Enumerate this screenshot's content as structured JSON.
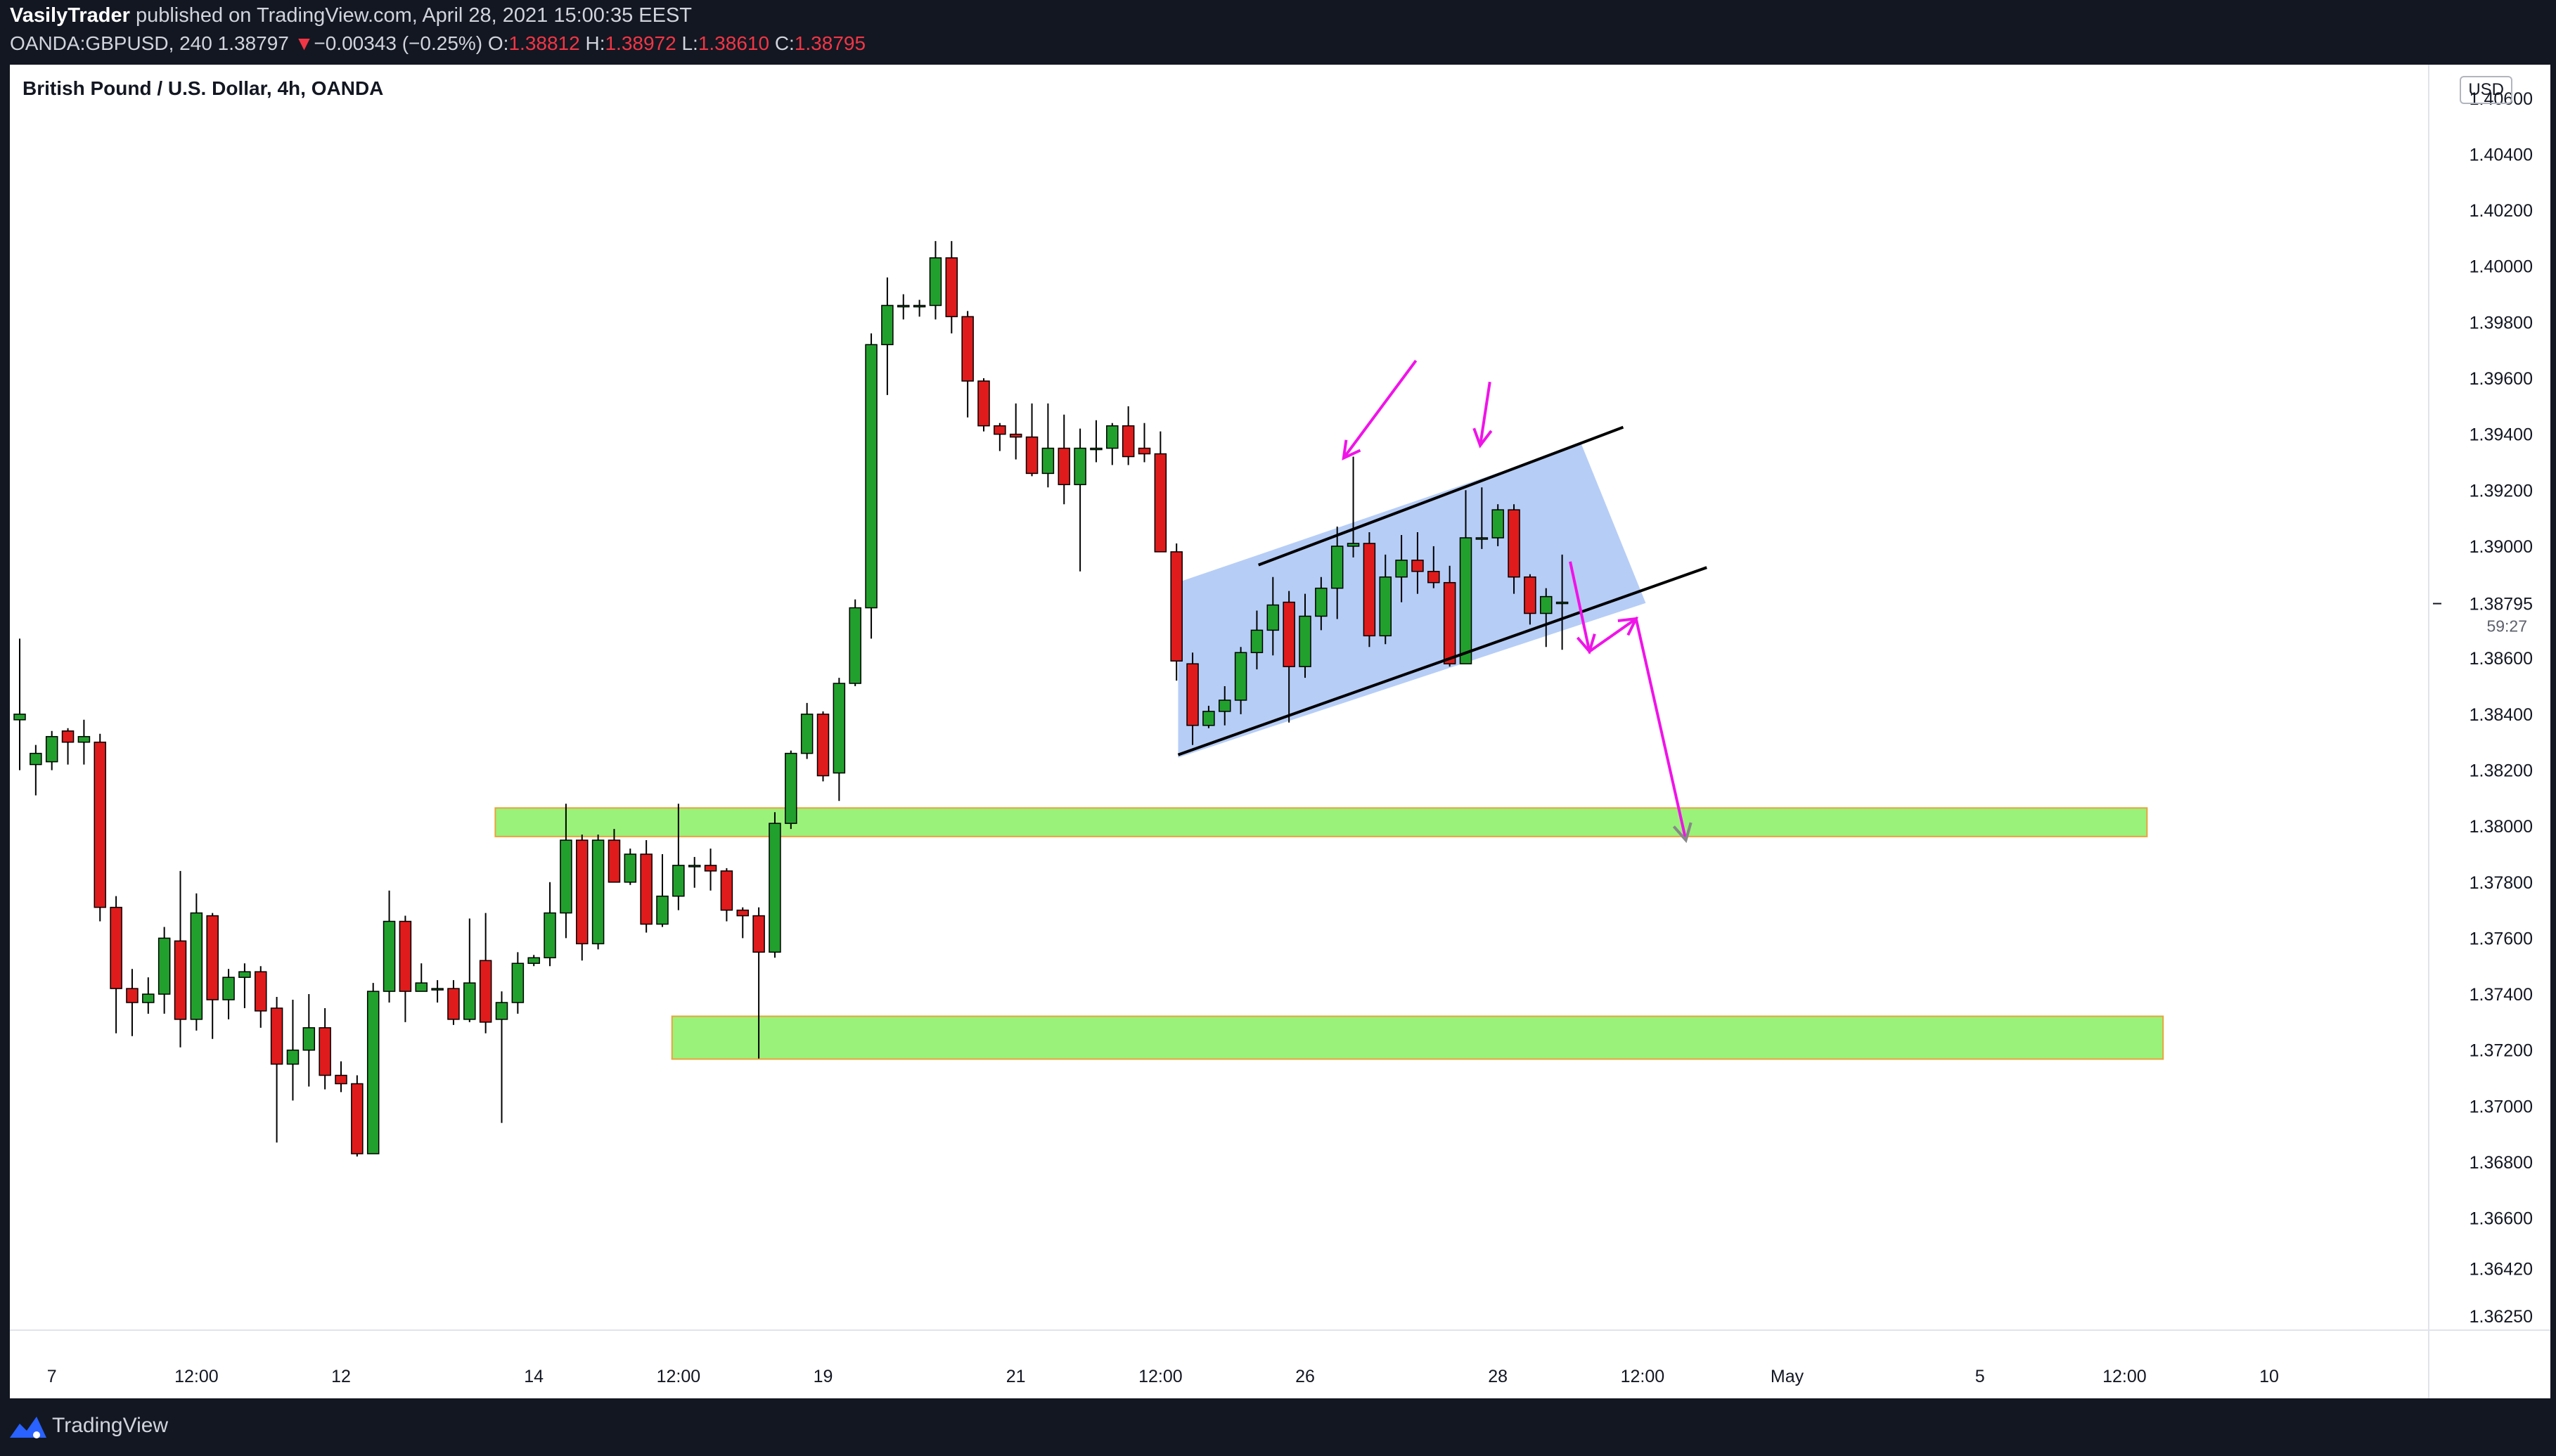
{
  "header": {
    "author": "VasilyTrader",
    "published_text": "published on TradingView.com, April 28, 2021 15:00:35 EEST",
    "symbol": "OANDA:GBPUSD, 240",
    "last": "1.38797",
    "change_arrow": "▼",
    "change": "−0.00343 (−0.25%)",
    "open_label": "O:",
    "open": "1.38812",
    "high_label": "H:",
    "high": "1.38972",
    "low_label": "L:",
    "low": "1.38610",
    "close_label": "C:",
    "close": "1.38795"
  },
  "chart": {
    "instrument_title": "British Pound / U.S. Dollar, 4h, OANDA",
    "currency": "USD",
    "countdown": "59:27",
    "last_price_label": "1.38795"
  },
  "footer": {
    "brand": "TradingView",
    "logo_icon": "tradingview-logo-icon"
  },
  "colors": {
    "up": "#22a02d",
    "down": "#e01b1b",
    "zone": "#9af27a",
    "zone_border": "#e8a33c",
    "channel_fill": "#a9c4f5",
    "arrow": "#f013e8"
  },
  "chart_data": {
    "type": "candlestick",
    "ylim": [
      1.3625,
      1.4072
    ],
    "y_ticks": [
      "1.40600",
      "1.40400",
      "1.40200",
      "1.40000",
      "1.39800",
      "1.39600",
      "1.39400",
      "1.39200",
      "1.39000",
      "1.38600",
      "1.38400",
      "1.38200",
      "1.38000",
      "1.37800",
      "1.37600",
      "1.37400",
      "1.37200",
      "1.37000",
      "1.36800",
      "1.36600",
      "1.36420",
      "1.36250"
    ],
    "x_labels": [
      {
        "label": "7",
        "bar": 2
      },
      {
        "label": "12:00",
        "bar": 11
      },
      {
        "label": "12",
        "bar": 20
      },
      {
        "label": "14",
        "bar": 32
      },
      {
        "label": "12:00",
        "bar": 41
      },
      {
        "label": "19",
        "bar": 50
      },
      {
        "label": "21",
        "bar": 62
      },
      {
        "label": "12:00",
        "bar": 71
      },
      {
        "label": "26",
        "bar": 80
      },
      {
        "label": "28",
        "bar": 92
      },
      {
        "label": "12:00",
        "bar": 101
      },
      {
        "label": "May",
        "bar": 110
      },
      {
        "label": "5",
        "bar": 122
      },
      {
        "label": "12:00",
        "bar": 131
      },
      {
        "label": "10",
        "bar": 140
      }
    ],
    "candles": [
      [
        1.3838,
        1.384,
        1.3867,
        1.382
      ],
      [
        1.3822,
        1.3826,
        1.3829,
        1.3811
      ],
      [
        1.3823,
        1.3832,
        1.3834,
        1.382
      ],
      [
        1.3834,
        1.383,
        1.3835,
        1.3822
      ],
      [
        1.383,
        1.3832,
        1.3838,
        1.3822
      ],
      [
        1.383,
        1.3771,
        1.3833,
        1.3766
      ],
      [
        1.3771,
        1.3742,
        1.3775,
        1.3726
      ],
      [
        1.3742,
        1.3737,
        1.3749,
        1.3725
      ],
      [
        1.3737,
        1.374,
        1.3746,
        1.3733
      ],
      [
        1.374,
        1.376,
        1.3764,
        1.3733
      ],
      [
        1.3759,
        1.3731,
        1.3784,
        1.3721
      ],
      [
        1.3731,
        1.3769,
        1.3776,
        1.3727
      ],
      [
        1.3768,
        1.3738,
        1.3769,
        1.3724
      ],
      [
        1.3738,
        1.3746,
        1.3749,
        1.3731
      ],
      [
        1.3746,
        1.3748,
        1.3751,
        1.3735
      ],
      [
        1.3748,
        1.3734,
        1.375,
        1.3728
      ],
      [
        1.3735,
        1.3715,
        1.3739,
        1.3687
      ],
      [
        1.3715,
        1.372,
        1.3738,
        1.3702
      ],
      [
        1.372,
        1.3728,
        1.374,
        1.3707
      ],
      [
        1.3728,
        1.3711,
        1.3735,
        1.3706
      ],
      [
        1.3711,
        1.3708,
        1.3716,
        1.3705
      ],
      [
        1.3708,
        1.3683,
        1.3711,
        1.3682
      ],
      [
        1.3683,
        1.3741,
        1.3744,
        1.3683
      ],
      [
        1.3741,
        1.3766,
        1.3777,
        1.3737
      ],
      [
        1.3766,
        1.3741,
        1.3768,
        1.373
      ],
      [
        1.3741,
        1.3744,
        1.3751,
        1.3741
      ],
      [
        1.3742,
        1.3742,
        1.3745,
        1.3737
      ],
      [
        1.3742,
        1.3731,
        1.3745,
        1.3729
      ],
      [
        1.3731,
        1.3744,
        1.3767,
        1.373
      ],
      [
        1.3752,
        1.373,
        1.3769,
        1.3726
      ],
      [
        1.3731,
        1.3737,
        1.3741,
        1.3694
      ],
      [
        1.3737,
        1.3751,
        1.3755,
        1.3733
      ],
      [
        1.3751,
        1.3753,
        1.3754,
        1.375
      ],
      [
        1.3753,
        1.3769,
        1.378,
        1.375
      ],
      [
        1.3769,
        1.3795,
        1.3808,
        1.376
      ],
      [
        1.3795,
        1.3758,
        1.3797,
        1.3752
      ],
      [
        1.3758,
        1.3795,
        1.3797,
        1.3756
      ],
      [
        1.3795,
        1.378,
        1.3799,
        1.378
      ],
      [
        1.378,
        1.379,
        1.3792,
        1.3779
      ],
      [
        1.379,
        1.3765,
        1.3795,
        1.3762
      ],
      [
        1.3765,
        1.3775,
        1.379,
        1.3764
      ],
      [
        1.3775,
        1.3786,
        1.3808,
        1.377
      ],
      [
        1.3786,
        1.3786,
        1.3789,
        1.3778
      ],
      [
        1.3786,
        1.3784,
        1.3792,
        1.3777
      ],
      [
        1.3784,
        1.377,
        1.3785,
        1.3766
      ],
      [
        1.377,
        1.3768,
        1.3771,
        1.376
      ],
      [
        1.3768,
        1.3755,
        1.3771,
        1.3717
      ],
      [
        1.3755,
        1.3801,
        1.3805,
        1.3753
      ],
      [
        1.3801,
        1.3826,
        1.3827,
        1.3799
      ],
      [
        1.3826,
        1.384,
        1.3844,
        1.3824
      ],
      [
        1.384,
        1.3818,
        1.3841,
        1.3816
      ],
      [
        1.3819,
        1.3851,
        1.3853,
        1.3809
      ],
      [
        1.3851,
        1.3878,
        1.3881,
        1.385
      ],
      [
        1.3878,
        1.3972,
        1.3976,
        1.3867
      ],
      [
        1.3972,
        1.3986,
        1.3996,
        1.3954
      ],
      [
        1.3986,
        1.3986,
        1.399,
        1.3981
      ],
      [
        1.3986,
        1.3986,
        1.3988,
        1.3982
      ],
      [
        1.3986,
        1.4003,
        1.4009,
        1.3981
      ],
      [
        1.4003,
        1.3982,
        1.4009,
        1.3976
      ],
      [
        1.3982,
        1.3959,
        1.3984,
        1.3946
      ],
      [
        1.3959,
        1.3943,
        1.396,
        1.3941
      ],
      [
        1.3943,
        1.394,
        1.3944,
        1.3934
      ],
      [
        1.394,
        1.3939,
        1.3951,
        1.3931
      ],
      [
        1.3939,
        1.3926,
        1.3951,
        1.3925
      ],
      [
        1.3926,
        1.3935,
        1.3951,
        1.3921
      ],
      [
        1.3935,
        1.3922,
        1.3947,
        1.3915
      ],
      [
        1.3922,
        1.3935,
        1.3942,
        1.3891
      ],
      [
        1.3935,
        1.3935,
        1.3945,
        1.393
      ],
      [
        1.3935,
        1.3943,
        1.3944,
        1.3929
      ],
      [
        1.3943,
        1.3932,
        1.395,
        1.3929
      ],
      [
        1.3935,
        1.3933,
        1.3944,
        1.393
      ],
      [
        1.3933,
        1.3898,
        1.3941,
        1.3898
      ],
      [
        1.3898,
        1.3859,
        1.3901,
        1.3852
      ],
      [
        1.3858,
        1.3836,
        1.3862,
        1.3829
      ],
      [
        1.3836,
        1.3841,
        1.3843,
        1.3835
      ],
      [
        1.3841,
        1.3845,
        1.385,
        1.3836
      ],
      [
        1.3845,
        1.3862,
        1.3864,
        1.384
      ],
      [
        1.3862,
        1.387,
        1.3877,
        1.3856
      ],
      [
        1.387,
        1.3879,
        1.3889,
        1.3861
      ],
      [
        1.388,
        1.3857,
        1.3884,
        1.3837
      ],
      [
        1.3857,
        1.3875,
        1.3883,
        1.3853
      ],
      [
        1.3875,
        1.3885,
        1.3889,
        1.387
      ],
      [
        1.3885,
        1.39,
        1.3907,
        1.3874
      ],
      [
        1.39,
        1.3901,
        1.3932,
        1.3896
      ],
      [
        1.3901,
        1.3868,
        1.3905,
        1.3864
      ],
      [
        1.3868,
        1.3889,
        1.3897,
        1.3865
      ],
      [
        1.3889,
        1.3895,
        1.3904,
        1.388
      ],
      [
        1.3895,
        1.3891,
        1.3905,
        1.3883
      ],
      [
        1.3891,
        1.3887,
        1.39,
        1.3885
      ],
      [
        1.3887,
        1.3858,
        1.3893,
        1.3857
      ],
      [
        1.3858,
        1.3903,
        1.392,
        1.3858
      ],
      [
        1.3903,
        1.3903,
        1.3921,
        1.3899
      ],
      [
        1.3903,
        1.3913,
        1.3915,
        1.39
      ],
      [
        1.3913,
        1.3889,
        1.3915,
        1.3883
      ],
      [
        1.3889,
        1.3876,
        1.389,
        1.3872
      ],
      [
        1.3876,
        1.3882,
        1.3885,
        1.3864
      ],
      [
        1.388,
        1.388,
        1.3897,
        1.3863
      ]
    ],
    "zones": [
      {
        "y_top": 1.38065,
        "y_bottom": 1.37963,
        "bar_start": 29.6,
        "bar_end": 132.4
      },
      {
        "y_top": 1.37321,
        "y_bottom": 1.37168,
        "bar_start": 40.6,
        "bar_end": 133.4
      }
    ],
    "channel": {
      "upper_line": [
        [
          77.1,
          1.38933
        ],
        [
          99.8,
          1.39425
        ]
      ],
      "lower_line": [
        [
          72.1,
          1.38255
        ],
        [
          105.0,
          1.38924
        ]
      ],
      "fill": [
        [
          72.1,
          1.38871
        ],
        [
          97.2,
          1.39364
        ],
        [
          101.2,
          1.38797
        ],
        [
          72.1,
          1.38245
        ]
      ]
    },
    "pink_arrows": [
      {
        "from": [
          86.9,
          1.39663
        ],
        "to": [
          82.4,
          1.39315
        ]
      },
      {
        "from": [
          91.5,
          1.39587
        ],
        "to": [
          90.9,
          1.3936
        ]
      },
      {
        "path": [
          [
            96.5,
            1.38945
          ],
          [
            97.7,
            1.38624
          ],
          [
            100.6,
            1.38741
          ],
          [
            103.7,
            1.3795
          ]
        ]
      }
    ]
  }
}
